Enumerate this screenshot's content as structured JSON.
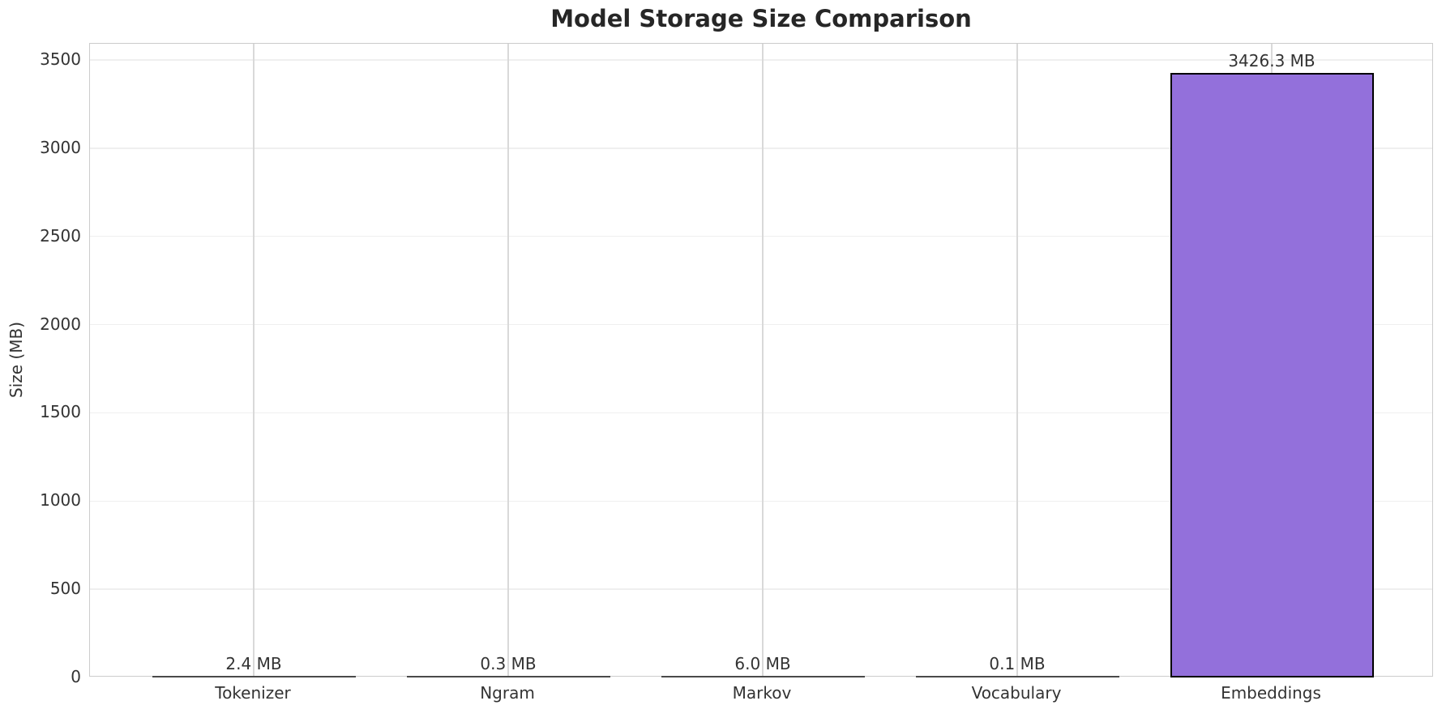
{
  "chart_data": {
    "type": "bar",
    "title": "Model Storage Size Comparison",
    "ylabel": "Size (MB)",
    "xlabel": "",
    "categories": [
      "Tokenizer",
      "Ngram",
      "Markov",
      "Vocabulary",
      "Embeddings"
    ],
    "values": [
      2.4,
      0.3,
      6.0,
      0.1,
      3426.3
    ],
    "bar_labels": [
      "2.4 MB",
      "0.3 MB",
      "6.0 MB",
      "0.1 MB",
      "3426.3 MB"
    ],
    "yticks": [
      0,
      500,
      1000,
      1500,
      2000,
      2500,
      3000,
      3500
    ],
    "ylim": [
      0,
      3592
    ],
    "grid": true,
    "legend_position": "none",
    "colors": {
      "bar_fill": "#9370db",
      "bar_edge": "#000000",
      "sliver_bar": "#4a4a4a",
      "grid_vertical": "#d9d9d9",
      "grid_horizontal": "#efefef",
      "spine": "#cccccc",
      "text": "#333333",
      "title": "#262626"
    }
  }
}
